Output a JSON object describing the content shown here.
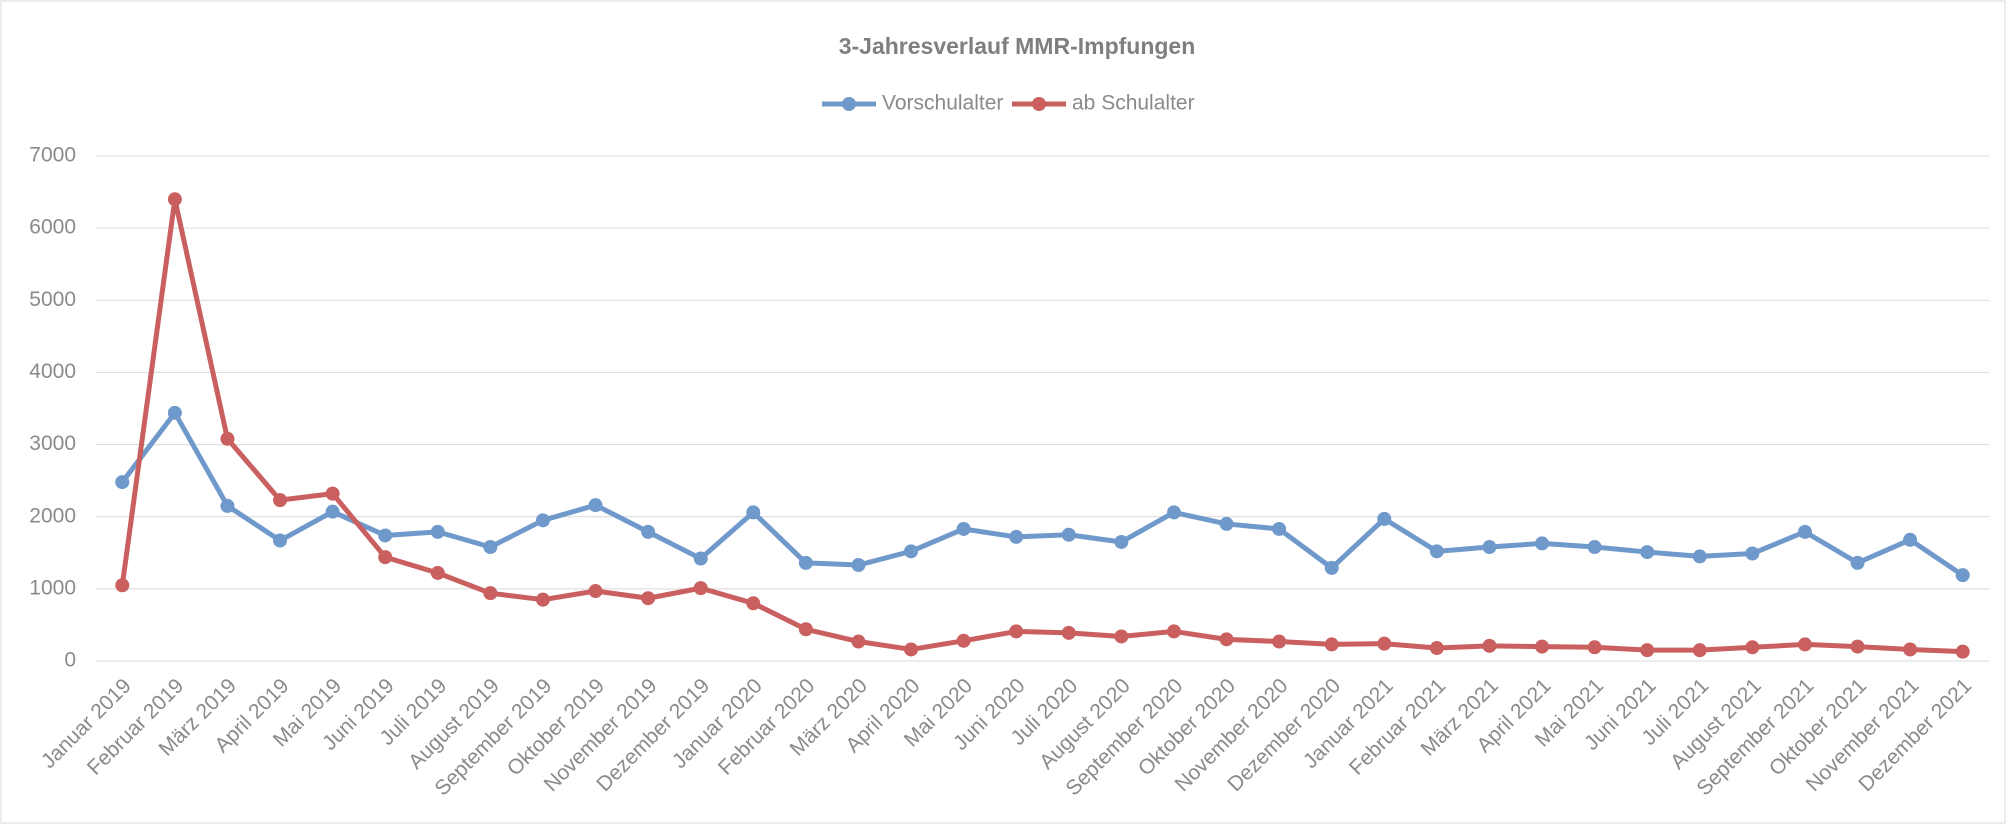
{
  "chart_data": {
    "type": "line",
    "title": "3-Jahresverlauf MMR-Impfungen",
    "categories": [
      "Januar 2019",
      "Februar 2019",
      "März 2019",
      "April 2019",
      "Mai 2019",
      "Juni 2019",
      "Juli 2019",
      "August 2019",
      "September 2019",
      "Oktober 2019",
      "November 2019",
      "Dezember 2019",
      "Januar 2020",
      "Februar 2020",
      "März 2020",
      "April 2020",
      "Mai 2020",
      "Juni 2020",
      "Juli 2020",
      "August 2020",
      "September 2020",
      "Oktober 2020",
      "November 2020",
      "Dezember 2020",
      "Januar 2021",
      "Februar 2021",
      "März 2021",
      "April 2021",
      "Mai 2021",
      "Juni 2021",
      "Juli 2021",
      "August 2021",
      "September 2021",
      "Oktober 2021",
      "November 2021",
      "Dezember 2021"
    ],
    "series": [
      {
        "name": "Vorschulalter",
        "color": "#7099cb",
        "values": [
          2480,
          3440,
          2150,
          1670,
          2070,
          1740,
          1790,
          1580,
          1950,
          2160,
          1790,
          1420,
          2060,
          1360,
          1330,
          1520,
          1830,
          1720,
          1750,
          1650,
          2060,
          1900,
          1830,
          1290,
          1970,
          1520,
          1580,
          1630,
          1580,
          1510,
          1450,
          1490,
          1790,
          1360,
          1680,
          1190
        ]
      },
      {
        "name": "ab Schulalter",
        "color": "#c9605f",
        "values": [
          1050,
          6400,
          3080,
          2230,
          2320,
          1440,
          1220,
          940,
          850,
          970,
          870,
          1010,
          800,
          440,
          270,
          160,
          280,
          410,
          390,
          340,
          410,
          300,
          270,
          230,
          240,
          180,
          210,
          200,
          190,
          150,
          150,
          190,
          230,
          200,
          160,
          130
        ]
      }
    ],
    "ylim": [
      0,
      7000
    ],
    "yticks": [
      0,
      1000,
      2000,
      3000,
      4000,
      5000,
      6000,
      7000
    ],
    "grid": true,
    "legend": "top"
  }
}
